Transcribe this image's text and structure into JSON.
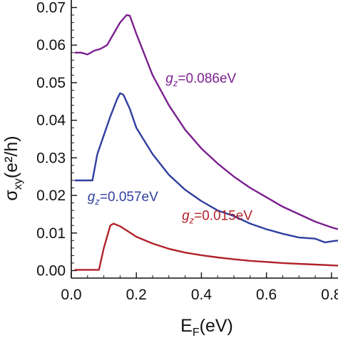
{
  "chart_data": {
    "type": "line",
    "xlabel": {
      "main": "E",
      "sub": "F",
      "rest": "(eV)"
    },
    "ylabel": {
      "main": "σ",
      "sub": "xy",
      "rest": "(e²/h)"
    },
    "xlim": [
      0.0,
      0.82
    ],
    "ylim": [
      -0.002,
      0.072
    ],
    "x_ticks": [
      0.0,
      0.2,
      0.4,
      0.6,
      0.8
    ],
    "x_tick_labels": [
      "0.0",
      "0.2",
      "0.4",
      "0.6",
      "0.8"
    ],
    "y_ticks": [
      0.0,
      0.01,
      0.02,
      0.03,
      0.04,
      0.05,
      0.06,
      0.07
    ],
    "y_tick_labels": [
      "0.00",
      "0.01",
      "0.02",
      "0.03",
      "0.04",
      "0.05",
      "0.06",
      "0.07"
    ],
    "grid": false,
    "series": [
      {
        "name": "g_z=0.086eV",
        "label_parts": {
          "g": "g",
          "sub": "z",
          "rest": "=0.086eV"
        },
        "color": "#7b1f8f",
        "x": [
          0.01,
          0.03,
          0.05,
          0.07,
          0.09,
          0.11,
          0.13,
          0.15,
          0.17,
          0.18,
          0.2,
          0.25,
          0.3,
          0.35,
          0.4,
          0.45,
          0.5,
          0.55,
          0.6,
          0.65,
          0.7,
          0.75,
          0.8,
          0.82
        ],
        "y": [
          0.058,
          0.058,
          0.0575,
          0.0585,
          0.059,
          0.06,
          0.063,
          0.066,
          0.068,
          0.0678,
          0.063,
          0.052,
          0.044,
          0.0375,
          0.0325,
          0.0285,
          0.025,
          0.022,
          0.0195,
          0.017,
          0.015,
          0.013,
          0.0115,
          0.011
        ]
      },
      {
        "name": "g_z=0.057eV",
        "label_parts": {
          "g": "g",
          "sub": "z",
          "rest": "=0.057eV"
        },
        "color": "#2f3fa0",
        "x": [
          0.01,
          0.05,
          0.065,
          0.08,
          0.1,
          0.12,
          0.14,
          0.15,
          0.16,
          0.18,
          0.2,
          0.25,
          0.3,
          0.35,
          0.4,
          0.45,
          0.5,
          0.55,
          0.6,
          0.65,
          0.7,
          0.75,
          0.78,
          0.8,
          0.82
        ],
        "y": [
          0.024,
          0.024,
          0.024,
          0.031,
          0.036,
          0.041,
          0.0455,
          0.0472,
          0.0468,
          0.043,
          0.038,
          0.031,
          0.0255,
          0.0215,
          0.0185,
          0.016,
          0.0145,
          0.0125,
          0.011,
          0.0098,
          0.0088,
          0.0085,
          0.0075,
          0.0078,
          0.008
        ]
      },
      {
        "name": "g_z=0.015eV",
        "label_parts": {
          "g": "g",
          "sub": "z",
          "rest": "=0.015eV"
        },
        "color": "#b0232b",
        "x": [
          0.01,
          0.05,
          0.085,
          0.1,
          0.12,
          0.13,
          0.15,
          0.2,
          0.25,
          0.3,
          0.35,
          0.4,
          0.45,
          0.5,
          0.55,
          0.6,
          0.65,
          0.7,
          0.75,
          0.8,
          0.82
        ],
        "y": [
          0.0002,
          0.0002,
          0.0002,
          0.006,
          0.012,
          0.0125,
          0.0118,
          0.009,
          0.0072,
          0.0058,
          0.0048,
          0.0041,
          0.0035,
          0.003,
          0.0026,
          0.0023,
          0.002,
          0.0018,
          0.0016,
          0.0014,
          0.0013
        ]
      }
    ],
    "series_label_anchors": [
      {
        "x": 0.29,
        "y": 0.05
      },
      {
        "x": 0.05,
        "y": 0.0185
      },
      {
        "x": 0.34,
        "y": 0.0135
      }
    ]
  }
}
